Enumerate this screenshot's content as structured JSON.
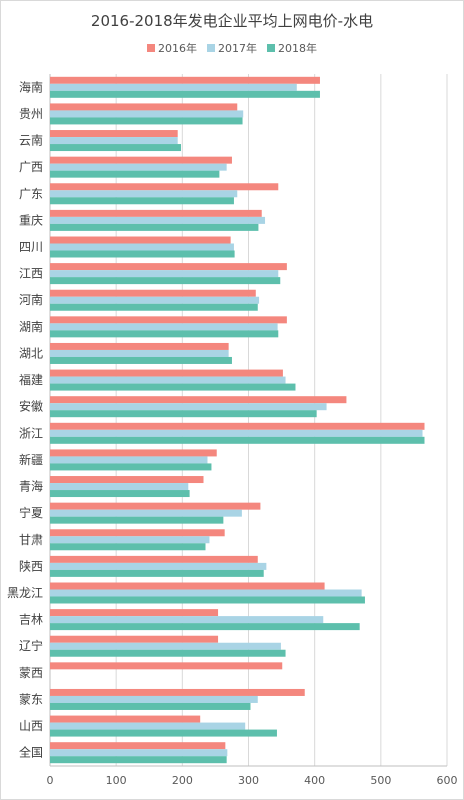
{
  "chart_data": {
    "type": "bar",
    "orientation": "horizontal",
    "title": "2016-2018年发电企业平均上网电价-水电",
    "categories": [
      "海南",
      "贵州",
      "云南",
      "广西",
      "广东",
      "重庆",
      "四川",
      "江西",
      "河南",
      "湖南",
      "湖北",
      "福建",
      "安徽",
      "浙江",
      "新疆",
      "青海",
      "宁夏",
      "甘肃",
      "陕西",
      "黑龙江",
      "吉林",
      "辽宁",
      "蒙西",
      "蒙东",
      "山西",
      "全国"
    ],
    "series": [
      {
        "name": "2016年",
        "color": "#F4877E",
        "values": [
          408,
          283,
          193,
          275,
          345,
          320,
          273,
          358,
          311,
          358,
          270,
          352,
          448,
          566,
          252,
          232,
          318,
          264,
          314,
          415,
          254,
          254,
          351,
          385,
          227,
          265
        ]
      },
      {
        "name": "2017年",
        "color": "#A9D4E5",
        "values": [
          373,
          292,
          193,
          267,
          283,
          325,
          278,
          345,
          316,
          344,
          270,
          356,
          418,
          563,
          238,
          209,
          290,
          241,
          327,
          471,
          413,
          349,
          null,
          314,
          295,
          268
        ]
      },
      {
        "name": "2018年",
        "color": "#5DBFAC",
        "values": [
          408,
          291,
          198,
          256,
          278,
          315,
          279,
          348,
          314,
          345,
          275,
          371,
          403,
          566,
          244,
          211,
          262,
          235,
          323,
          476,
          468,
          356,
          null,
          303,
          343,
          267
        ]
      }
    ],
    "xlim": [
      0,
      600
    ],
    "xticks": [
      0,
      100,
      200,
      300,
      400,
      500,
      600
    ],
    "grid": true,
    "legend_position": "top"
  }
}
